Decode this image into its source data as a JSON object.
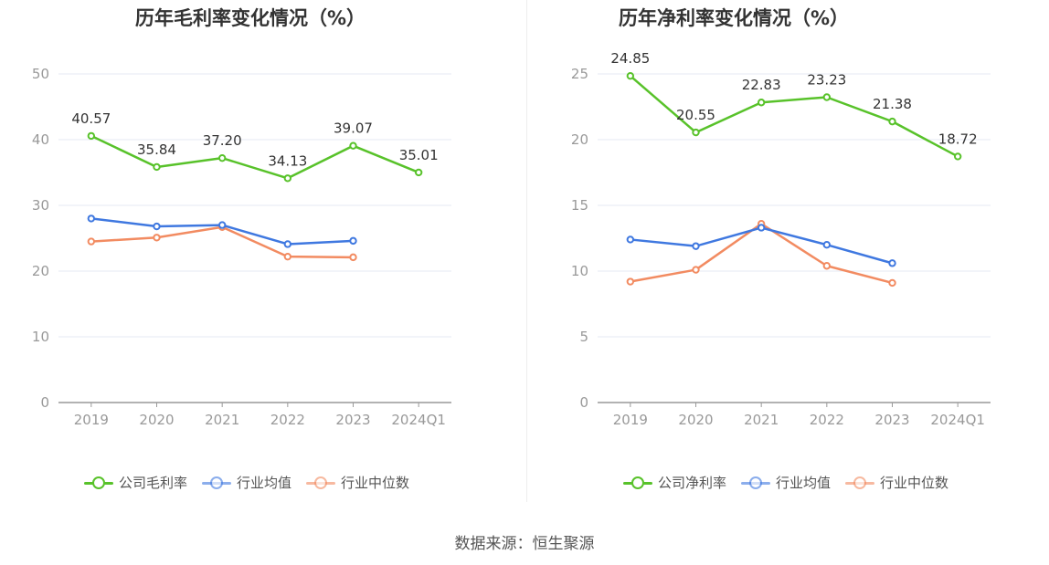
{
  "source_label": "数据来源：恒生聚源",
  "colors": {
    "company": "#58c22a",
    "industry_avg": "#3f78e0",
    "industry_median": "#f28b61",
    "grid": "#e6eaf3",
    "axis": "#999999",
    "tick_text": "#999999",
    "label_text": "#333333"
  },
  "chart_data": [
    {
      "type": "line",
      "title": "历年毛利率变化情况（%）",
      "categories": [
        "2019",
        "2020",
        "2021",
        "2022",
        "2023",
        "2024Q1"
      ],
      "yticks": [
        "0",
        "10",
        "20",
        "30",
        "40",
        "50"
      ],
      "ylim": [
        0,
        50
      ],
      "grid": true,
      "legend_position": "bottom",
      "series": [
        {
          "name": "公司毛利率",
          "key": "company",
          "values": [
            40.57,
            35.84,
            37.2,
            34.13,
            39.07,
            35.01
          ],
          "labels": [
            "40.57",
            "35.84",
            "37.20",
            "34.13",
            "39.07",
            "35.01"
          ]
        },
        {
          "name": "行业均值",
          "key": "industry_avg",
          "values": [
            28.0,
            26.8,
            27.0,
            24.1,
            24.6,
            null
          ]
        },
        {
          "name": "行业中位数",
          "key": "industry_median",
          "values": [
            24.5,
            25.1,
            26.7,
            22.2,
            22.1,
            null
          ]
        }
      ]
    },
    {
      "type": "line",
      "title": "历年净利率变化情况（%）",
      "categories": [
        "2019",
        "2020",
        "2021",
        "2022",
        "2023",
        "2024Q1"
      ],
      "yticks": [
        "0",
        "5",
        "10",
        "15",
        "20",
        "25"
      ],
      "ylim": [
        0,
        25
      ],
      "grid": true,
      "legend_position": "bottom",
      "series": [
        {
          "name": "公司净利率",
          "key": "company",
          "values": [
            24.85,
            20.55,
            22.83,
            23.23,
            21.38,
            18.72
          ],
          "labels": [
            "24.85",
            "20.55",
            "22.83",
            "23.23",
            "21.38",
            "18.72"
          ]
        },
        {
          "name": "行业均值",
          "key": "industry_avg",
          "values": [
            12.4,
            11.9,
            13.3,
            12.0,
            10.6,
            null
          ]
        },
        {
          "name": "行业中位数",
          "key": "industry_median",
          "values": [
            9.2,
            10.1,
            13.6,
            10.4,
            9.1,
            null
          ]
        }
      ]
    }
  ]
}
